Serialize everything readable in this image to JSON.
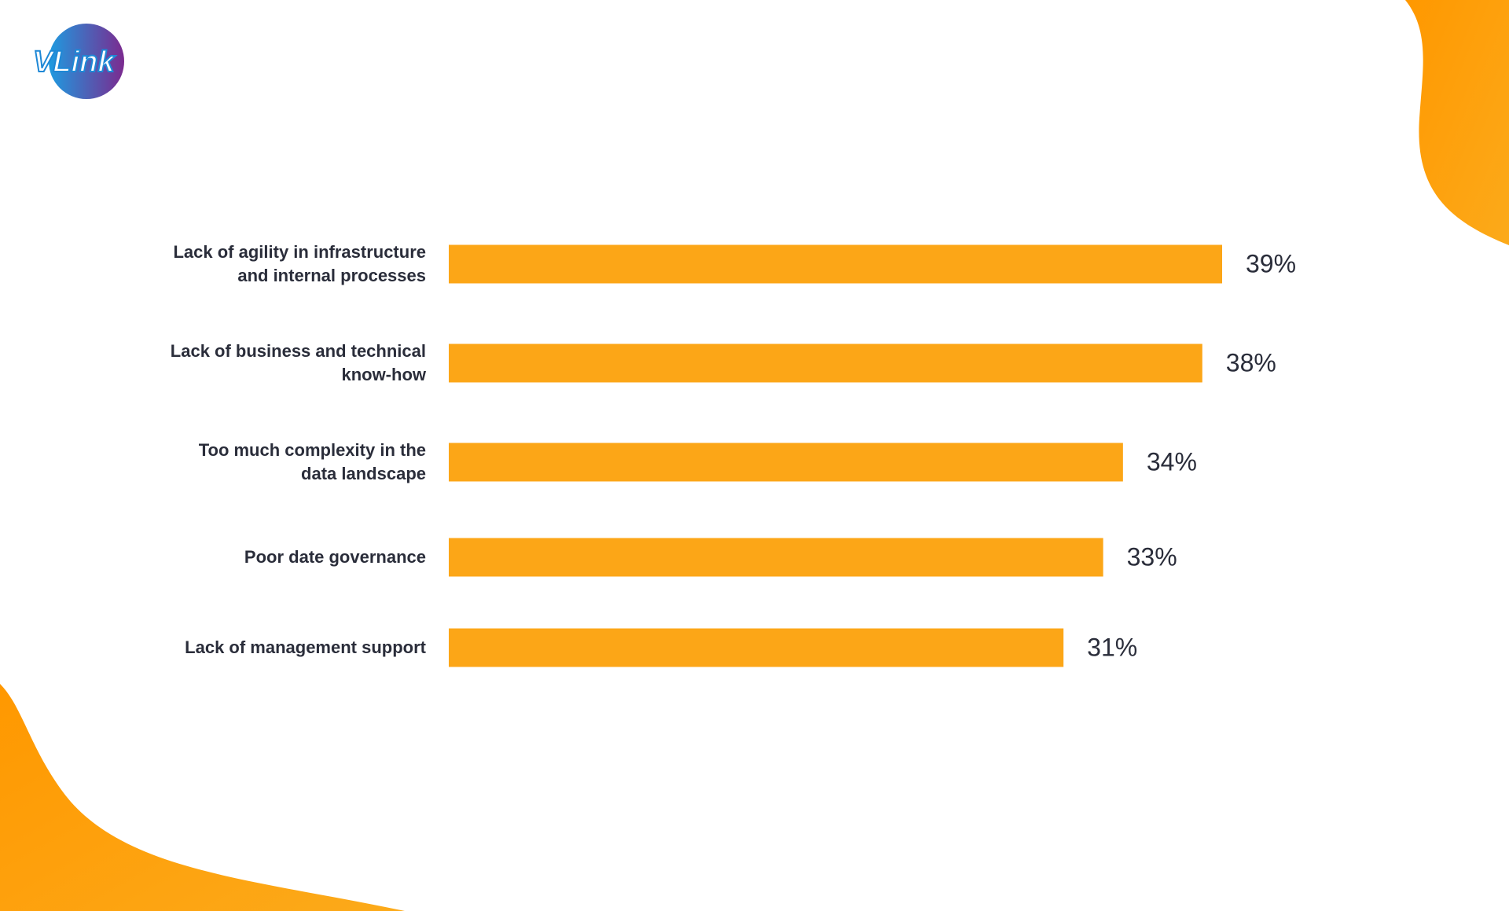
{
  "logo": "VLink",
  "chart_data": {
    "type": "hbar",
    "categories": [
      "Lack of agility in infrastructure\nand internal processes",
      "Lack of business and technical\nknow-how",
      "Too much complexity in the\ndata landscape",
      "Poor date governance",
      "Lack of management support"
    ],
    "values": [
      39,
      38,
      34,
      33,
      31
    ],
    "value_labels": [
      "39%",
      "38%",
      "34%",
      "33%",
      "31%"
    ],
    "color": "#fca617"
  }
}
